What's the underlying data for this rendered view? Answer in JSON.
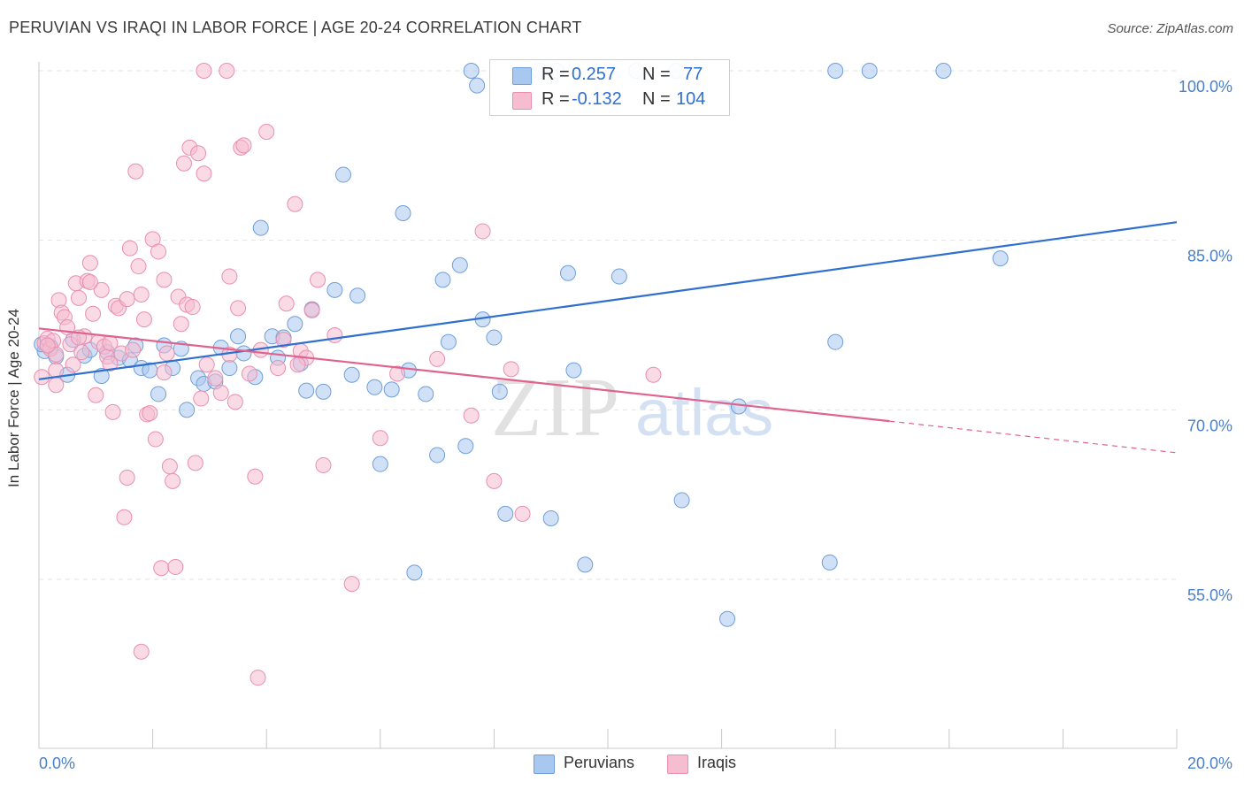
{
  "title": "PERUVIAN VS IRAQI IN LABOR FORCE | AGE 20-24 CORRELATION CHART",
  "source": "Source: ZipAtlas.com",
  "watermark": {
    "zip": "ZIP",
    "atlas": "atlas"
  },
  "colors": {
    "peruvian_fill": "#a9c8f0",
    "peruvian_stroke": "#6f9fd8",
    "peruvian_line": "#2f6fcf",
    "iraqi_fill": "#f6bcd0",
    "iraqi_stroke": "#e98fae",
    "iraqi_line": "#e0628e",
    "axis_text": "#4a7fc9",
    "grid": "#e2e2e2"
  },
  "legend_top": [
    {
      "r_label": "R =",
      "r_value": "0.257",
      "n_label": "N =",
      "n_value": "77"
    },
    {
      "r_label": "R =",
      "r_value": "-0.132",
      "n_label": "N =",
      "n_value": "104"
    }
  ],
  "chart_data": {
    "type": "scatter",
    "title": "PERUVIAN VS IRAQI IN LABOR FORCE | AGE 20-24 CORRELATION CHART",
    "xlabel": "",
    "ylabel": "In Labor Force | Age 20-24",
    "xlim": [
      0,
      20
    ],
    "ylim": [
      40,
      100.5
    ],
    "x_tick_labels": [
      "0.0%",
      "20.0%"
    ],
    "y_ticks": [
      55,
      70,
      85,
      100
    ],
    "y_tick_labels": [
      "55.0%",
      "70.0%",
      "85.0%",
      "100.0%"
    ],
    "grid": true,
    "legend_position": "bottom",
    "series": [
      {
        "name": "Peruvians",
        "trend": {
          "x": [
            0,
            20
          ],
          "y": [
            72.7,
            86.6
          ]
        },
        "points": [
          [
            0.1,
            75.2
          ],
          [
            0.2,
            75.6
          ],
          [
            0.3,
            74.7
          ],
          [
            0.5,
            73.1
          ],
          [
            0.6,
            76.2
          ],
          [
            0.8,
            74.8
          ],
          [
            0.9,
            75.3
          ],
          [
            1.1,
            73.0
          ],
          [
            1.2,
            75.1
          ],
          [
            1.4,
            74.6
          ],
          [
            1.6,
            74.4
          ],
          [
            1.7,
            75.7
          ],
          [
            1.8,
            73.7
          ],
          [
            1.95,
            73.5
          ],
          [
            2.1,
            71.4
          ],
          [
            2.2,
            75.7
          ],
          [
            2.35,
            73.7
          ],
          [
            2.5,
            75.4
          ],
          [
            2.6,
            70.0
          ],
          [
            2.8,
            72.8
          ],
          [
            2.9,
            72.3
          ],
          [
            3.1,
            72.5
          ],
          [
            3.2,
            75.5
          ],
          [
            3.35,
            73.7
          ],
          [
            3.5,
            76.5
          ],
          [
            3.6,
            75.0
          ],
          [
            3.8,
            72.9
          ],
          [
            3.9,
            86.1
          ],
          [
            4.1,
            76.5
          ],
          [
            4.2,
            74.6
          ],
          [
            4.3,
            76.4
          ],
          [
            4.5,
            77.6
          ],
          [
            4.6,
            74.1
          ],
          [
            4.7,
            71.7
          ],
          [
            4.8,
            78.9
          ],
          [
            5.0,
            71.6
          ],
          [
            5.2,
            80.6
          ],
          [
            5.35,
            90.8
          ],
          [
            5.5,
            73.1
          ],
          [
            5.6,
            80.1
          ],
          [
            5.9,
            72.0
          ],
          [
            6.0,
            65.2
          ],
          [
            6.2,
            71.8
          ],
          [
            6.4,
            87.4
          ],
          [
            6.5,
            73.5
          ],
          [
            6.6,
            55.6
          ],
          [
            6.8,
            71.4
          ],
          [
            7.0,
            66.0
          ],
          [
            7.1,
            81.5
          ],
          [
            7.2,
            76.0
          ],
          [
            7.4,
            82.8
          ],
          [
            7.5,
            66.8
          ],
          [
            7.6,
            100.0
          ],
          [
            7.7,
            98.7
          ],
          [
            7.8,
            78.0
          ],
          [
            8.0,
            76.4
          ],
          [
            8.1,
            71.6
          ],
          [
            8.2,
            60.8
          ],
          [
            8.8,
            100.0
          ],
          [
            9.0,
            60.4
          ],
          [
            9.1,
            100.0
          ],
          [
            9.3,
            82.1
          ],
          [
            9.4,
            73.5
          ],
          [
            9.6,
            56.3
          ],
          [
            10.2,
            81.8
          ],
          [
            10.5,
            100.0
          ],
          [
            11.2,
            100.0
          ],
          [
            11.3,
            62.0
          ],
          [
            12.1,
            51.5
          ],
          [
            12.3,
            70.3
          ],
          [
            13.9,
            56.5
          ],
          [
            14.0,
            76.0
          ],
          [
            14.0,
            100.0
          ],
          [
            14.6,
            100.0
          ],
          [
            15.9,
            100.0
          ],
          [
            16.9,
            83.4
          ],
          [
            0.05,
            75.8
          ]
        ]
      },
      {
        "name": "Iraqis",
        "trend": {
          "x": [
            0,
            14.95
          ],
          "y": [
            77.2,
            69.0
          ]
        },
        "trend_dashed": {
          "x": [
            14.95,
            20
          ],
          "y": [
            69.0,
            66.2
          ]
        },
        "points": [
          [
            0.05,
            72.9
          ],
          [
            0.1,
            75.9
          ],
          [
            0.15,
            76.3
          ],
          [
            0.2,
            75.4
          ],
          [
            0.25,
            76.1
          ],
          [
            0.3,
            74.9
          ],
          [
            0.35,
            79.7
          ],
          [
            0.4,
            78.6
          ],
          [
            0.45,
            78.2
          ],
          [
            0.5,
            77.3
          ],
          [
            0.55,
            75.8
          ],
          [
            0.6,
            74.0
          ],
          [
            0.65,
            81.2
          ],
          [
            0.7,
            79.9
          ],
          [
            0.75,
            75.1
          ],
          [
            0.8,
            76.5
          ],
          [
            0.85,
            81.4
          ],
          [
            0.9,
            83.0
          ],
          [
            0.95,
            78.5
          ],
          [
            1.0,
            71.3
          ],
          [
            1.05,
            76.0
          ],
          [
            1.1,
            80.6
          ],
          [
            1.15,
            75.6
          ],
          [
            1.2,
            74.7
          ],
          [
            1.25,
            74.1
          ],
          [
            1.3,
            69.8
          ],
          [
            1.35,
            79.2
          ],
          [
            1.4,
            79.0
          ],
          [
            1.45,
            75.0
          ],
          [
            1.5,
            60.5
          ],
          [
            1.55,
            64.0
          ],
          [
            1.6,
            84.3
          ],
          [
            1.65,
            75.3
          ],
          [
            1.7,
            91.1
          ],
          [
            1.75,
            82.7
          ],
          [
            1.8,
            80.2
          ],
          [
            1.85,
            78.0
          ],
          [
            1.9,
            69.6
          ],
          [
            1.95,
            69.7
          ],
          [
            2.0,
            85.1
          ],
          [
            2.05,
            67.4
          ],
          [
            2.1,
            84.0
          ],
          [
            2.15,
            56.0
          ],
          [
            2.2,
            81.5
          ],
          [
            2.25,
            75.0
          ],
          [
            2.3,
            65.0
          ],
          [
            2.35,
            63.7
          ],
          [
            2.4,
            56.1
          ],
          [
            2.45,
            80.0
          ],
          [
            2.5,
            77.6
          ],
          [
            2.55,
            91.8
          ],
          [
            2.6,
            79.3
          ],
          [
            2.65,
            93.2
          ],
          [
            2.7,
            79.1
          ],
          [
            2.75,
            65.3
          ],
          [
            2.8,
            92.7
          ],
          [
            2.85,
            71.0
          ],
          [
            2.9,
            90.9
          ],
          [
            2.95,
            74.0
          ],
          [
            3.1,
            72.8
          ],
          [
            3.2,
            71.5
          ],
          [
            3.3,
            100.0
          ],
          [
            3.35,
            81.8
          ],
          [
            3.45,
            70.7
          ],
          [
            3.5,
            79.0
          ],
          [
            3.55,
            93.2
          ],
          [
            3.6,
            93.4
          ],
          [
            3.7,
            73.2
          ],
          [
            3.8,
            64.1
          ],
          [
            3.85,
            46.3
          ],
          [
            4.0,
            94.6
          ],
          [
            4.2,
            73.7
          ],
          [
            4.3,
            76.2
          ],
          [
            4.35,
            79.4
          ],
          [
            4.5,
            88.2
          ],
          [
            4.6,
            75.2
          ],
          [
            4.7,
            74.6
          ],
          [
            4.8,
            78.8
          ],
          [
            4.9,
            81.5
          ],
          [
            5.0,
            65.1
          ],
          [
            5.2,
            76.6
          ],
          [
            5.5,
            54.6
          ],
          [
            6.0,
            67.5
          ],
          [
            6.3,
            73.2
          ],
          [
            7.0,
            74.5
          ],
          [
            7.6,
            69.5
          ],
          [
            7.8,
            85.8
          ],
          [
            8.0,
            63.7
          ],
          [
            8.3,
            73.6
          ],
          [
            8.5,
            60.8
          ],
          [
            10.8,
            73.1
          ],
          [
            2.9,
            100.0
          ],
          [
            0.3,
            72.2
          ],
          [
            1.8,
            48.6
          ],
          [
            0.7,
            76.4
          ],
          [
            1.25,
            75.9
          ],
          [
            3.9,
            75.3
          ],
          [
            2.2,
            73.3
          ],
          [
            0.9,
            81.3
          ],
          [
            4.55,
            74.0
          ],
          [
            3.35,
            74.9
          ],
          [
            0.15,
            75.7
          ],
          [
            0.3,
            73.5
          ],
          [
            1.55,
            79.8
          ]
        ]
      }
    ]
  },
  "legend_bottom": [
    "Peruvians",
    "Iraqis"
  ]
}
